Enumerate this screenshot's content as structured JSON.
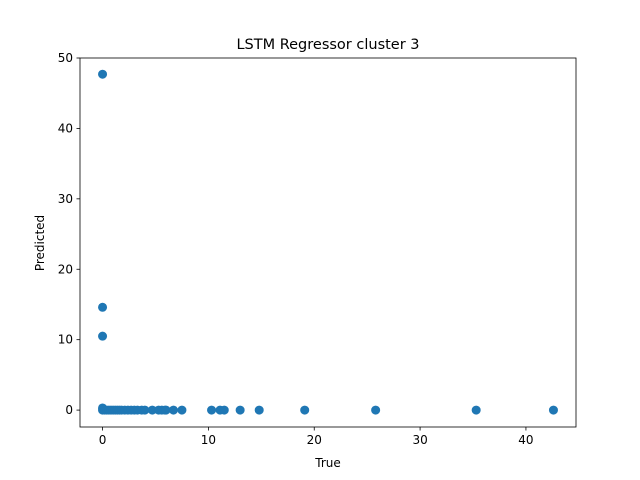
{
  "chart_data": {
    "type": "scatter",
    "title": "LSTM Regressor cluster 3",
    "xlabel": "True",
    "ylabel": "Predicted",
    "xlim": [
      -2.13,
      44.73
    ],
    "ylim": [
      -2.4,
      50
    ],
    "xticks": [
      0,
      10,
      20,
      30,
      40
    ],
    "yticks": [
      0,
      10,
      20,
      30,
      40,
      50
    ],
    "grid": false,
    "marker_color": "#1f77b4",
    "points": [
      {
        "x": 0.0,
        "y": 47.7
      },
      {
        "x": 0.0,
        "y": 14.6
      },
      {
        "x": 0.0,
        "y": 10.5
      },
      {
        "x": 0.0,
        "y": 0.3
      },
      {
        "x": 0.0,
        "y": 0.0
      },
      {
        "x": 0.2,
        "y": 0.0
      },
      {
        "x": 0.4,
        "y": 0.0
      },
      {
        "x": 0.6,
        "y": 0.0
      },
      {
        "x": 0.8,
        "y": 0.0
      },
      {
        "x": 1.0,
        "y": 0.0
      },
      {
        "x": 1.2,
        "y": 0.0
      },
      {
        "x": 1.4,
        "y": 0.0
      },
      {
        "x": 1.6,
        "y": 0.0
      },
      {
        "x": 1.8,
        "y": 0.0
      },
      {
        "x": 2.1,
        "y": 0.0
      },
      {
        "x": 2.4,
        "y": 0.0
      },
      {
        "x": 2.7,
        "y": 0.0
      },
      {
        "x": 3.0,
        "y": 0.0
      },
      {
        "x": 3.3,
        "y": 0.0
      },
      {
        "x": 3.7,
        "y": 0.0
      },
      {
        "x": 4.0,
        "y": 0.0
      },
      {
        "x": 4.7,
        "y": 0.0
      },
      {
        "x": 5.3,
        "y": 0.0
      },
      {
        "x": 5.6,
        "y": 0.0
      },
      {
        "x": 5.9,
        "y": 0.0
      },
      {
        "x": 6.0,
        "y": 0.0
      },
      {
        "x": 6.7,
        "y": 0.0
      },
      {
        "x": 7.5,
        "y": 0.0
      },
      {
        "x": 10.3,
        "y": 0.0
      },
      {
        "x": 11.1,
        "y": 0.0
      },
      {
        "x": 11.5,
        "y": 0.0
      },
      {
        "x": 13.0,
        "y": 0.0
      },
      {
        "x": 14.8,
        "y": 0.0
      },
      {
        "x": 19.1,
        "y": 0.0
      },
      {
        "x": 25.8,
        "y": 0.0
      },
      {
        "x": 35.3,
        "y": 0.0
      },
      {
        "x": 42.6,
        "y": 0.0
      }
    ]
  }
}
